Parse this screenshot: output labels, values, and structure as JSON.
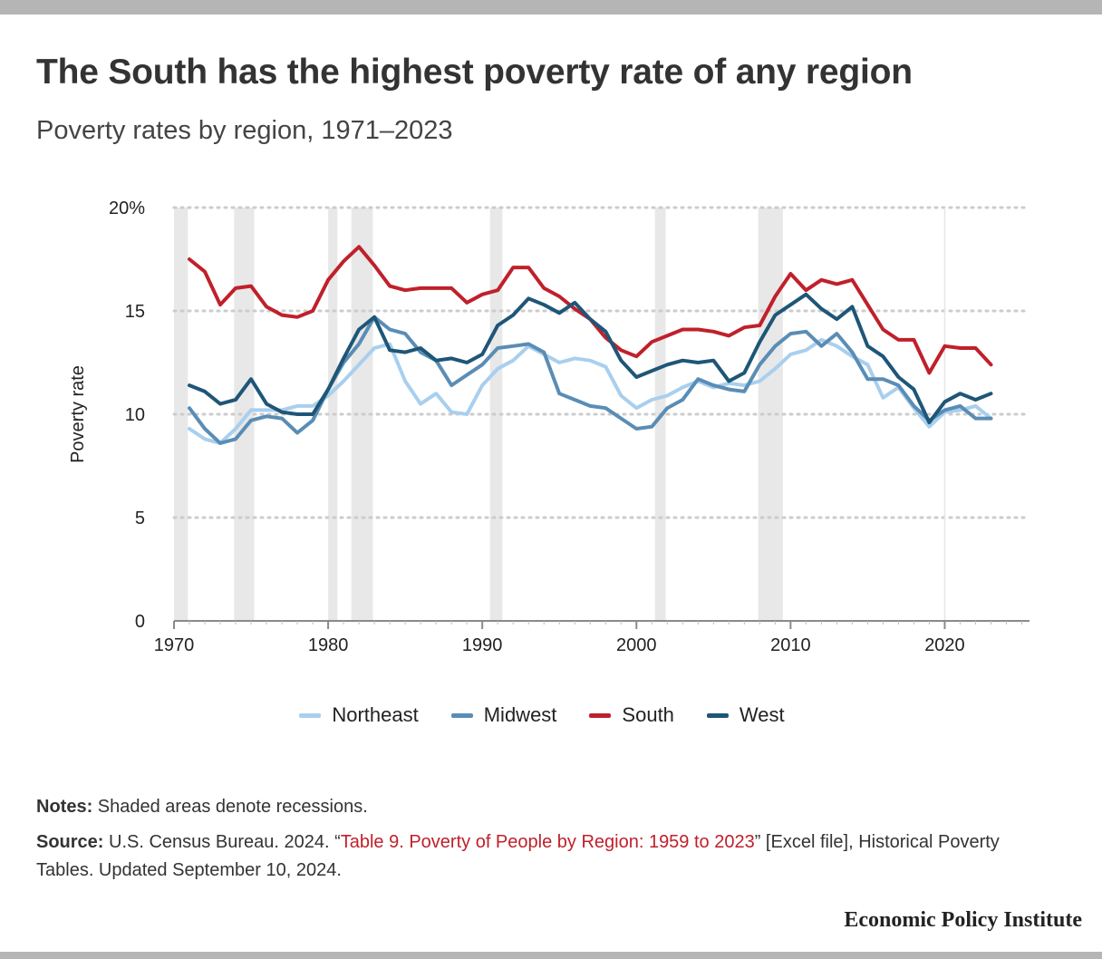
{
  "header": {
    "title": "The South has the highest poverty rate of any region",
    "subtitle": "Poverty rates by region, 1971–2023"
  },
  "legend": {
    "northeast": "Northeast",
    "midwest": "Midwest",
    "south": "South",
    "west": "West"
  },
  "notes": {
    "notes_label": "Notes:",
    "notes_text": "Shaded areas denote recessions.",
    "source_label": "Source:",
    "source_pre": "U.S. Census Bureau. 2024. “",
    "source_link": "Table 9. Poverty of People by Region: 1959 to 2023",
    "source_post": "” [Excel file], Historical Poverty Tables. Updated September 10, 2024."
  },
  "footer": {
    "brand": "Economic Policy Institute"
  },
  "colors": {
    "northeast": "#a9cfee",
    "midwest": "#5a8db5",
    "south": "#c0202b",
    "west": "#1e5677",
    "recession": "#e8e8e8",
    "gridline": "#cccccc"
  },
  "chart_data": {
    "type": "line",
    "title": "The South has the highest poverty rate of any region",
    "subtitle": "Poverty rates by region, 1971–2023",
    "xlabel": "",
    "ylabel": "Poverty rate",
    "xlim": [
      1970,
      2025
    ],
    "ylim": [
      0,
      20
    ],
    "x_ticks": [
      1970,
      1980,
      1990,
      2000,
      2010,
      2020
    ],
    "y_ticks": [
      0,
      5,
      10,
      15,
      20
    ],
    "y_tick_labels": [
      "0",
      "5",
      "10",
      "15",
      "20%"
    ],
    "grid": "horizontal dotted",
    "legend_position": "bottom",
    "recessions": [
      [
        1970.0,
        1970.9
      ],
      [
        1973.9,
        1975.2
      ],
      [
        1980.0,
        1980.6
      ],
      [
        1981.5,
        1982.9
      ],
      [
        1990.5,
        1991.3
      ],
      [
        2001.2,
        2001.9
      ],
      [
        2007.9,
        2009.5
      ]
    ],
    "x": [
      1971,
      1972,
      1973,
      1974,
      1975,
      1976,
      1977,
      1978,
      1979,
      1980,
      1981,
      1982,
      1983,
      1984,
      1985,
      1986,
      1987,
      1988,
      1989,
      1990,
      1991,
      1992,
      1993,
      1994,
      1995,
      1996,
      1997,
      1998,
      1999,
      2000,
      2001,
      2002,
      2003,
      2004,
      2005,
      2006,
      2007,
      2008,
      2009,
      2010,
      2011,
      2012,
      2013,
      2014,
      2015,
      2016,
      2017,
      2018,
      2019,
      2020,
      2021,
      2022,
      2023
    ],
    "series": [
      {
        "name": "Northeast",
        "values": [
          9.3,
          8.8,
          8.6,
          9.3,
          10.2,
          10.2,
          10.2,
          10.4,
          10.4,
          10.9,
          11.6,
          12.4,
          13.2,
          13.4,
          11.6,
          10.5,
          11.0,
          10.1,
          10.0,
          11.4,
          12.2,
          12.6,
          13.3,
          12.9,
          12.5,
          12.7,
          12.6,
          12.3,
          10.9,
          10.3,
          10.7,
          10.9,
          11.3,
          11.6,
          11.3,
          11.5,
          11.4,
          11.6,
          12.2,
          12.9,
          13.1,
          13.6,
          13.3,
          12.8,
          12.4,
          10.8,
          11.3,
          10.3,
          9.4,
          10.1,
          10.2,
          10.4,
          9.8
        ]
      },
      {
        "name": "Midwest",
        "values": [
          10.3,
          9.3,
          8.6,
          8.8,
          9.7,
          9.9,
          9.8,
          9.1,
          9.7,
          11.2,
          12.5,
          13.4,
          14.7,
          14.1,
          13.9,
          13.0,
          12.6,
          11.4,
          11.9,
          12.4,
          13.2,
          13.3,
          13.4,
          13.0,
          11.0,
          10.7,
          10.4,
          10.3,
          9.8,
          9.3,
          9.4,
          10.3,
          10.7,
          11.7,
          11.4,
          11.2,
          11.1,
          12.4,
          13.3,
          13.9,
          14.0,
          13.3,
          13.9,
          13.0,
          11.7,
          11.7,
          11.4,
          10.4,
          9.7,
          10.2,
          10.4,
          9.8,
          9.8
        ]
      },
      {
        "name": "South",
        "values": [
          17.5,
          16.9,
          15.3,
          16.1,
          16.2,
          15.2,
          14.8,
          14.7,
          15.0,
          16.5,
          17.4,
          18.1,
          17.2,
          16.2,
          16.0,
          16.1,
          16.1,
          16.1,
          15.4,
          15.8,
          16.0,
          17.1,
          17.1,
          16.1,
          15.7,
          15.1,
          14.6,
          13.7,
          13.1,
          12.8,
          13.5,
          13.8,
          14.1,
          14.1,
          14.0,
          13.8,
          14.2,
          14.3,
          15.7,
          16.8,
          16.0,
          16.5,
          16.3,
          16.5,
          15.3,
          14.1,
          13.6,
          13.6,
          12.0,
          13.3,
          13.2,
          13.2,
          12.4
        ]
      },
      {
        "name": "West",
        "values": [
          11.4,
          11.1,
          10.5,
          10.7,
          11.7,
          10.5,
          10.1,
          10.0,
          10.0,
          11.2,
          12.7,
          14.1,
          14.7,
          13.1,
          13.0,
          13.2,
          12.6,
          12.7,
          12.5,
          12.9,
          14.3,
          14.8,
          15.6,
          15.3,
          14.9,
          15.4,
          14.6,
          14.0,
          12.6,
          11.8,
          12.1,
          12.4,
          12.6,
          12.5,
          12.6,
          11.6,
          12.0,
          13.5,
          14.8,
          15.3,
          15.8,
          15.1,
          14.6,
          15.2,
          13.3,
          12.8,
          11.8,
          11.2,
          9.6,
          10.6,
          11.0,
          10.7,
          11.0
        ]
      }
    ]
  }
}
